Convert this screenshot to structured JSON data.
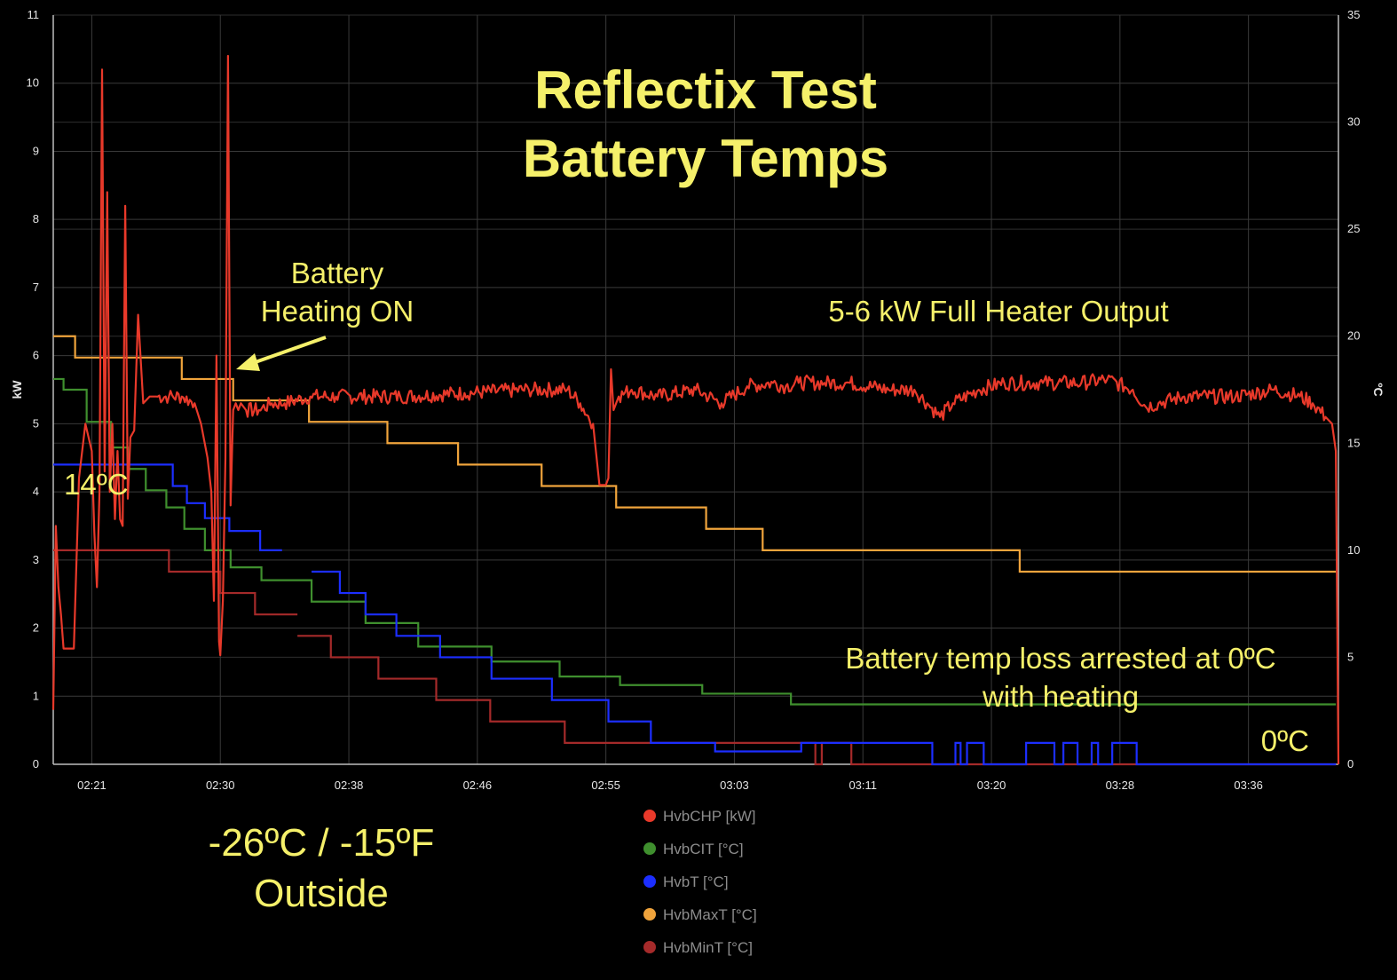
{
  "chart_data": {
    "type": "line",
    "title": "Reflectix Test",
    "subtitle": "Battery Temps",
    "ylabel": "kW",
    "y2label": "ºC",
    "ylim": [
      0,
      11
    ],
    "y2lim": [
      0,
      35
    ],
    "yticks": [
      "0",
      "1",
      "2",
      "3",
      "4",
      "5",
      "6",
      "7",
      "8",
      "9",
      "10",
      "11"
    ],
    "y2ticks": [
      "0",
      "5",
      "10",
      "15",
      "20",
      "25",
      "30",
      "35"
    ],
    "xlim_minutes": [
      138,
      238
    ],
    "xticks": [
      {
        "label": "02:21",
        "minute": 141
      },
      {
        "label": "02:30",
        "minute": 151
      },
      {
        "label": "02:38",
        "minute": 161
      },
      {
        "label": "02:46",
        "minute": 171
      },
      {
        "label": "02:55",
        "minute": 181
      },
      {
        "label": "03:03",
        "minute": 191
      },
      {
        "label": "03:11",
        "minute": 201
      },
      {
        "label": "03:20",
        "minute": 211
      },
      {
        "label": "03:28",
        "minute": 221
      },
      {
        "label": "03:36",
        "minute": 231
      }
    ],
    "grid": true,
    "legend_position": "bottom-center",
    "annotations": [
      {
        "text": "Battery",
        "id": "bat"
      },
      {
        "text": "Heating ON",
        "id": "heat"
      },
      {
        "text": "5-6 kW Full Heater Output",
        "id": "full"
      },
      {
        "text": "14ºC",
        "id": "t14"
      },
      {
        "text": "Battery temp loss arrested at 0ºC",
        "id": "arr1"
      },
      {
        "text": "with heating",
        "id": "arr2"
      },
      {
        "text": "0ºC",
        "id": "t0"
      },
      {
        "text": "-26ºC / -15ºF",
        "id": "out1"
      },
      {
        "text": "Outside",
        "id": "out2"
      }
    ],
    "series": [
      {
        "name": "HvbCHP [kW]",
        "color": "#e8392a",
        "axis": "left",
        "x": [
          138,
          138.2,
          138.4,
          138.6,
          138.8,
          139,
          139.3,
          139.6,
          140,
          140.5,
          141,
          141.2,
          141.4,
          141.6,
          141.8,
          142,
          142.2,
          142.4,
          142.6,
          142.8,
          143,
          143.2,
          143.4,
          143.6,
          143.8,
          144,
          144.3,
          144.6,
          145,
          145.5,
          146,
          147,
          148,
          149,
          149.5,
          150,
          150.3,
          150.5,
          150.7,
          150.9,
          151,
          151.2,
          151.4,
          151.6,
          151.8,
          152,
          152.2,
          152.4,
          152.6,
          153,
          154,
          155,
          156,
          158,
          160,
          165,
          170,
          175,
          178,
          179,
          180,
          180.5,
          181,
          181.2,
          181.4,
          181.6,
          181.8,
          182,
          183,
          185,
          188,
          190,
          192,
          194,
          195,
          196,
          198,
          200,
          203,
          205,
          206,
          207,
          208,
          210,
          212,
          215,
          218,
          220,
          222,
          223,
          224,
          226,
          230,
          233,
          235,
          236,
          237,
          237.5,
          237.8,
          238
        ],
        "y": [
          0.8,
          3.5,
          2.6,
          2.2,
          1.7,
          1.7,
          1.7,
          1.7,
          4.2,
          5.0,
          4.6,
          3.4,
          2.6,
          4.0,
          10.2,
          4.3,
          8.4,
          4.0,
          5.0,
          3.6,
          4.6,
          3.6,
          3.5,
          8.2,
          3.9,
          4.8,
          4.9,
          6.6,
          5.3,
          5.4,
          5.4,
          5.4,
          5.4,
          5.3,
          5.0,
          4.5,
          4.0,
          2.4,
          6.0,
          1.8,
          1.6,
          2.4,
          4.5,
          10.4,
          3.8,
          5.2,
          5.3,
          5.2,
          5.3,
          5.2,
          5.2,
          5.3,
          5.3,
          5.4,
          5.4,
          5.4,
          5.45,
          5.5,
          5.5,
          5.3,
          5.0,
          4.1,
          4.1,
          4.2,
          5.8,
          5.2,
          5.3,
          5.4,
          5.5,
          5.4,
          5.5,
          5.3,
          5.55,
          5.6,
          5.55,
          5.6,
          5.6,
          5.6,
          5.5,
          5.5,
          5.3,
          5.1,
          5.3,
          5.5,
          5.6,
          5.6,
          5.6,
          5.65,
          5.5,
          5.25,
          5.3,
          5.4,
          5.4,
          5.5,
          5.4,
          5.3,
          5.1,
          5.0,
          4.6,
          0.0
        ]
      },
      {
        "name": "HvbCIT [°C]",
        "color": "#3f8f2e",
        "axis": "right",
        "steps": [
          [
            138,
            18
          ],
          [
            138.8,
            17.5
          ],
          [
            140.6,
            16
          ],
          [
            142.5,
            14.8
          ],
          [
            143.8,
            13.8
          ],
          [
            145.2,
            12.8
          ],
          [
            146.8,
            12.0
          ],
          [
            148.2,
            11.0
          ],
          [
            149.8,
            10.0
          ],
          [
            151.8,
            9.2
          ],
          [
            154.2,
            8.6
          ],
          [
            158.1,
            7.6
          ],
          [
            162.3,
            6.6
          ],
          [
            166.4,
            5.5
          ],
          [
            172.1,
            4.8
          ],
          [
            177.4,
            4.1
          ],
          [
            182.1,
            3.7
          ],
          [
            188.5,
            3.3
          ],
          [
            195.4,
            2.8
          ],
          [
            237.8,
            2.8
          ]
        ]
      },
      {
        "name": "HvbT [°C]",
        "color": "#1c2eff",
        "axis": "right",
        "steps": [
          [
            138,
            14
          ],
          [
            145.3,
            14.0
          ],
          [
            147.3,
            13.0
          ],
          [
            148.4,
            12.2
          ],
          [
            149.8,
            11.5
          ],
          [
            151.7,
            10.9
          ],
          [
            154.1,
            10.0
          ],
          [
            155.8,
            10.0
          ]
        ],
        "steps2": [
          [
            158.1,
            9.0
          ],
          [
            160.3,
            8.0
          ],
          [
            162.3,
            7.0
          ],
          [
            164.7,
            6.0
          ],
          [
            168.1,
            5.0
          ],
          [
            172.1,
            4.0
          ],
          [
            176.8,
            3.0
          ],
          [
            181.2,
            2.0
          ],
          [
            184.5,
            1.0
          ],
          [
            189.5,
            0.6
          ],
          [
            194.1,
            0.6
          ],
          [
            196.2,
            1.0
          ],
          [
            202.4,
            1.0
          ],
          [
            206.4,
            0.0
          ],
          [
            208.2,
            1.0
          ],
          [
            208.6,
            0.0
          ],
          [
            209.1,
            1.0
          ],
          [
            210.4,
            0.0
          ],
          [
            213.7,
            1.0
          ],
          [
            215.9,
            0.0
          ],
          [
            216.6,
            1.0
          ],
          [
            217.7,
            0.0
          ],
          [
            218.8,
            1.0
          ],
          [
            219.3,
            0.0
          ],
          [
            220.4,
            1.0
          ],
          [
            222.3,
            0.0
          ],
          [
            237.8,
            0.0
          ]
        ]
      },
      {
        "name": "HvbMaxT [°C]",
        "color": "#f0a43c",
        "axis": "right",
        "steps": [
          [
            138,
            20
          ],
          [
            139.7,
            19.0
          ],
          [
            148.0,
            18.0
          ],
          [
            151.0,
            18.0
          ],
          [
            152.0,
            17.0
          ],
          [
            156.5,
            17.0
          ],
          [
            157.9,
            16.0
          ],
          [
            164.0,
            15.0
          ],
          [
            169.5,
            14.0
          ],
          [
            176.0,
            13.0
          ],
          [
            181.8,
            12.0
          ],
          [
            188.8,
            11.0
          ],
          [
            193.2,
            10.0
          ],
          [
            213.2,
            9.0
          ],
          [
            237.8,
            9.0
          ]
        ]
      },
      {
        "name": "HvbMinT [°C]",
        "color": "#a52a2a",
        "axis": "right",
        "steps": [
          [
            138,
            10
          ],
          [
            147.0,
            9.0
          ],
          [
            149.3,
            9.0
          ],
          [
            151.0,
            8.0
          ],
          [
            153.7,
            7.0
          ],
          [
            157.0,
            7.0
          ]
        ],
        "steps2": [
          [
            157.0,
            6.0
          ],
          [
            159.6,
            5.0
          ],
          [
            163.3,
            4.0
          ],
          [
            167.8,
            3.0
          ],
          [
            172.0,
            2.0
          ],
          [
            177.8,
            1.0
          ],
          [
            184.4,
            1.0
          ],
          [
            193.7,
            1.0
          ],
          [
            197.3,
            0.0
          ],
          [
            197.8,
            1.0
          ],
          [
            200.1,
            0.0
          ],
          [
            237.8,
            0.0
          ]
        ]
      }
    ]
  }
}
